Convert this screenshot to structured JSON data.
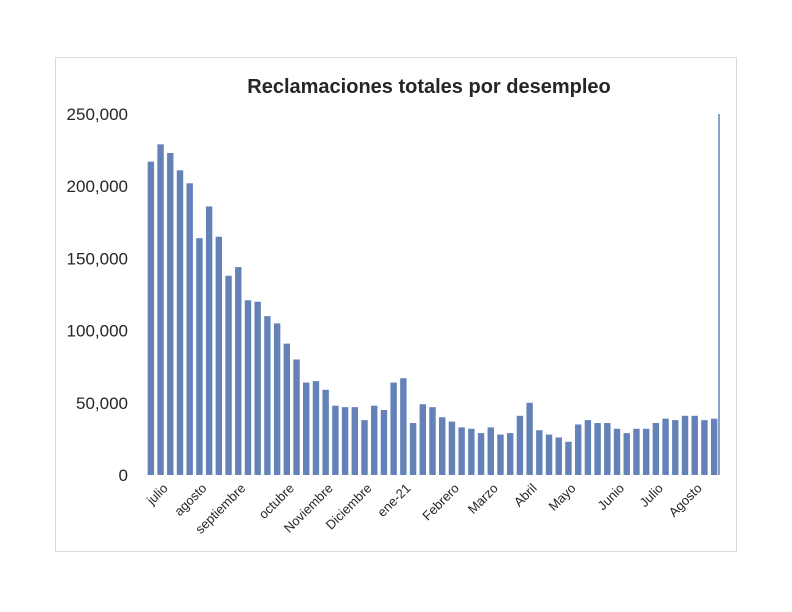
{
  "chart_data": {
    "type": "bar",
    "title": "Reclamaciones totales por desempleo",
    "xlabel": "",
    "ylabel": "",
    "ylim": [
      0,
      250000
    ],
    "yticks": [
      "0",
      "50,000",
      "100,000",
      "150,000",
      "200,000",
      "250,000"
    ],
    "ytick_values": [
      0,
      50000,
      100000,
      150000,
      200000,
      250000
    ],
    "month_labels": [
      {
        "label": "julio",
        "bar_index": 1
      },
      {
        "label": "agosto",
        "bar_index": 5
      },
      {
        "label": "septiembre",
        "bar_index": 9
      },
      {
        "label": "octubre",
        "bar_index": 14
      },
      {
        "label": "Noviembre",
        "bar_index": 18
      },
      {
        "label": "Diciembre",
        "bar_index": 22
      },
      {
        "label": "ene-21",
        "bar_index": 26
      },
      {
        "label": "Febrero",
        "bar_index": 31
      },
      {
        "label": "Marzo",
        "bar_index": 35
      },
      {
        "label": "Abril",
        "bar_index": 39
      },
      {
        "label": "Mayo",
        "bar_index": 43
      },
      {
        "label": "Junio",
        "bar_index": 48
      },
      {
        "label": "Julio",
        "bar_index": 52
      },
      {
        "label": "Agosto",
        "bar_index": 56
      }
    ],
    "values": [
      217000,
      229000,
      223000,
      211000,
      202000,
      164000,
      186000,
      165000,
      138000,
      144000,
      121000,
      120000,
      110000,
      105000,
      91000,
      80000,
      64000,
      65000,
      59000,
      48000,
      47000,
      47000,
      38000,
      48000,
      45000,
      64000,
      67000,
      36000,
      49000,
      47000,
      40000,
      37000,
      33000,
      32000,
      29000,
      33000,
      28000,
      29000,
      41000,
      50000,
      31000,
      28000,
      26000,
      23000,
      35000,
      38000,
      36000,
      36000,
      32000,
      29000,
      32000,
      32000,
      36000,
      39000,
      38000,
      41000,
      41000,
      38000,
      39000
    ],
    "bar_color": "#6582b8",
    "grid": false,
    "legend": "none"
  }
}
